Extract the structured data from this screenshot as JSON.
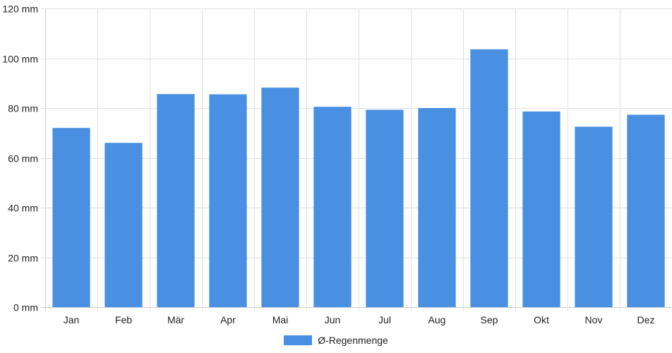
{
  "chart_data": {
    "type": "bar",
    "categories": [
      "Jan",
      "Feb",
      "Mär",
      "Apr",
      "Mai",
      "Jun",
      "Jul",
      "Aug",
      "Sep",
      "Okt",
      "Nov",
      "Dez"
    ],
    "series": [
      {
        "name": "Ø-Regenmenge",
        "values": [
          72,
          66,
          85.6,
          85.5,
          88.2,
          80.5,
          79.3,
          80,
          103.6,
          78.6,
          72.5,
          77.3
        ]
      }
    ],
    "ylim": [
      0,
      120
    ],
    "yticks": [
      0,
      20,
      40,
      60,
      80,
      100,
      120
    ],
    "ytick_labels": [
      "0 mm",
      "20 mm",
      "40 mm",
      "60 mm",
      "80 mm",
      "100 mm",
      "120 mm"
    ],
    "grid": true,
    "legend_position": "bottom-center"
  },
  "colors": {
    "bar": "#4a90e2",
    "grid": "#e0e0e0",
    "axis": "#cccccc",
    "text": "#222222"
  }
}
